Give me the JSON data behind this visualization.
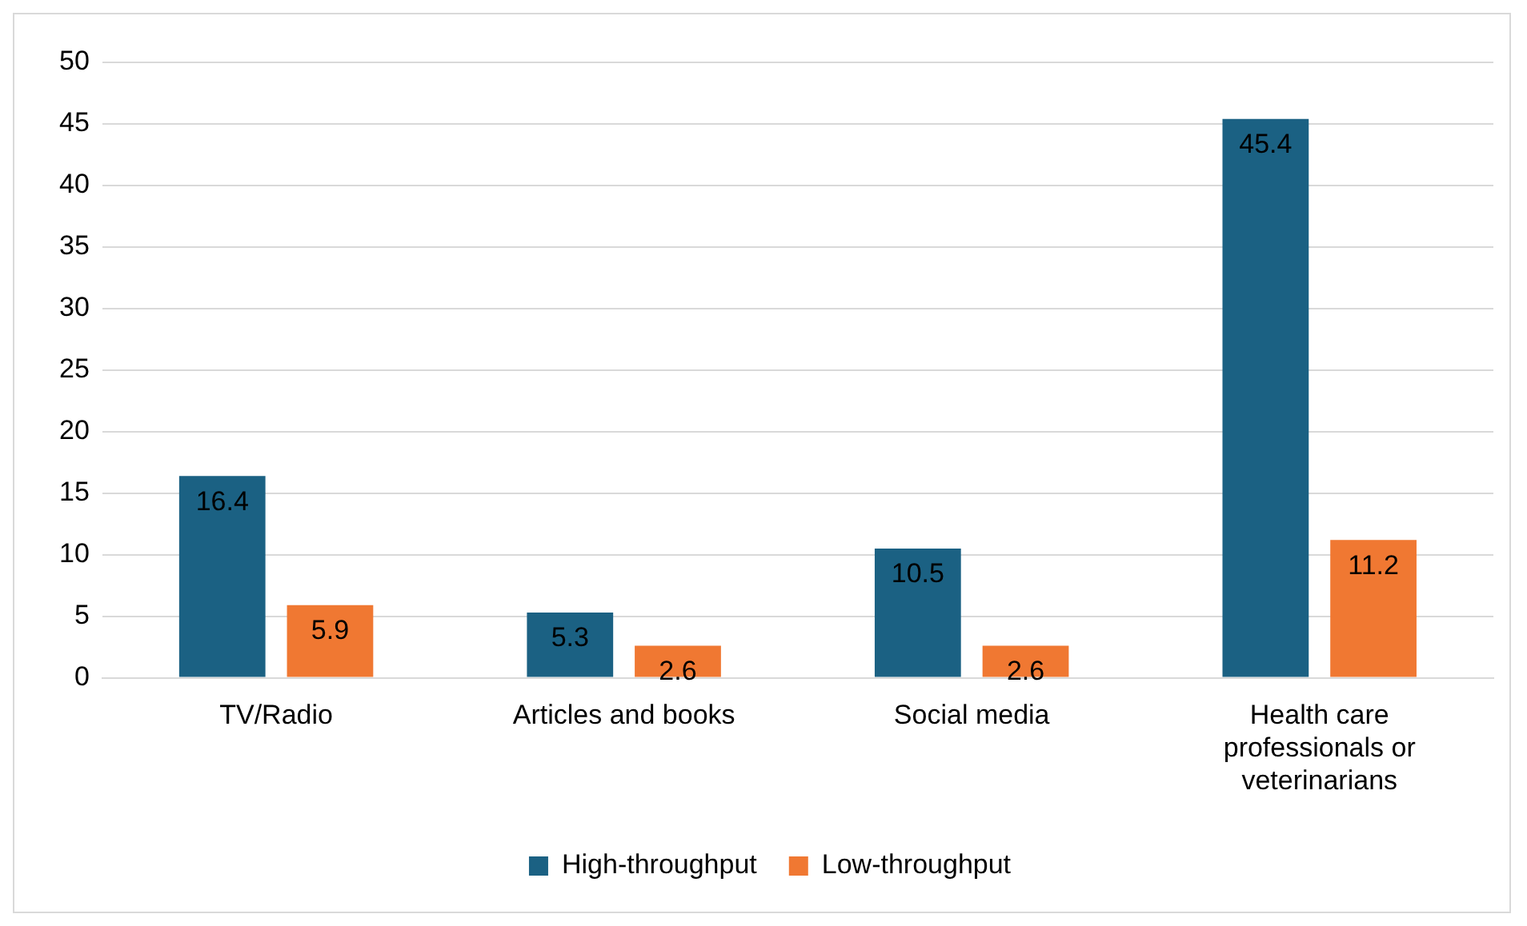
{
  "chart_data": {
    "type": "bar",
    "categories": [
      "TV/Radio",
      "Articles and books",
      "Social media",
      "Health care professionals or veterinarians"
    ],
    "series": [
      {
        "name": "High-throughput",
        "color": "#1b6183",
        "values": [
          16.4,
          5.3,
          10.5,
          45.4
        ]
      },
      {
        "name": "Low-throughput",
        "color": "#f07832",
        "values": [
          5.9,
          2.6,
          2.6,
          11.2
        ]
      }
    ],
    "ylim": [
      0,
      50
    ],
    "yticks": [
      0,
      5,
      10,
      15,
      20,
      25,
      30,
      35,
      40,
      45,
      50
    ],
    "grid": "y",
    "legend": "bottom",
    "data_labels": true
  }
}
